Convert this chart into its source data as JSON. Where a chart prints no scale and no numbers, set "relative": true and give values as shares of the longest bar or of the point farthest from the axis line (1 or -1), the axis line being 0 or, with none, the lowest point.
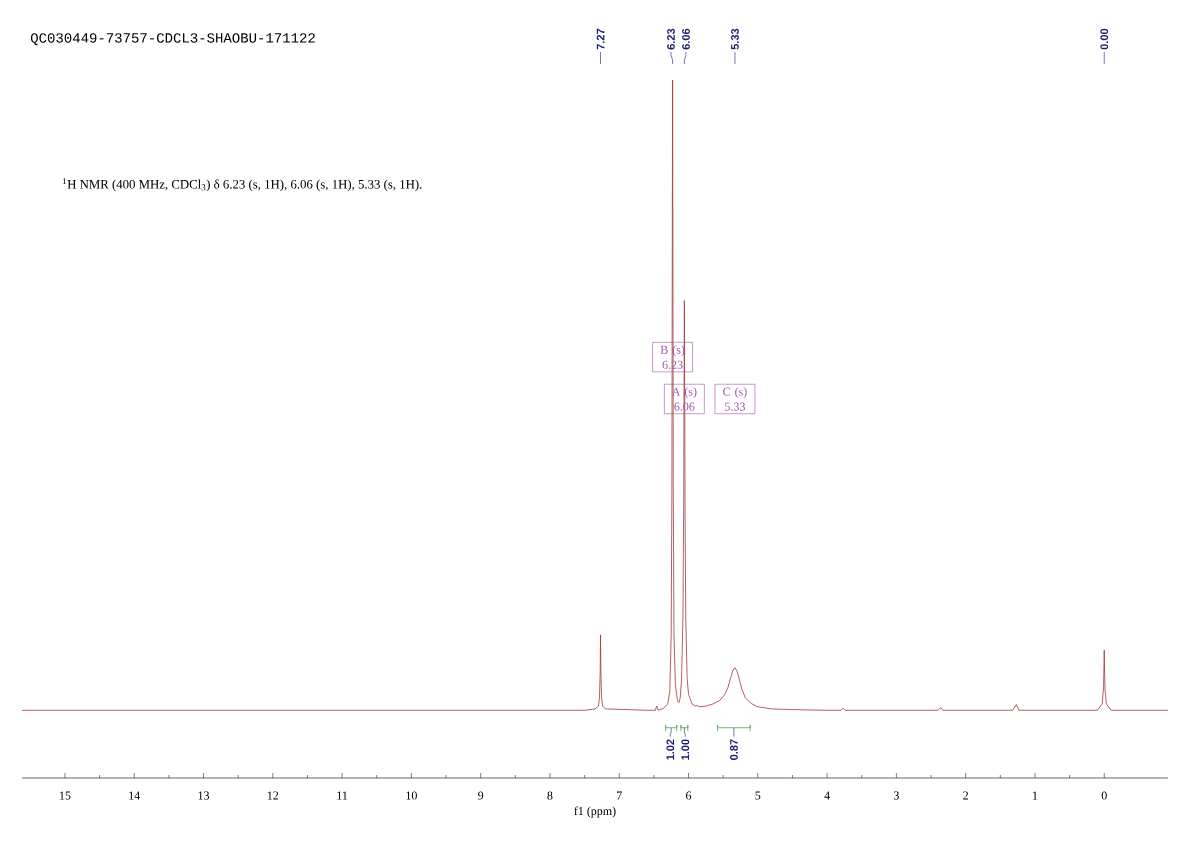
{
  "chart_data": {
    "type": "line",
    "title": "QC030449-73757-CDCL3-SHAOBU-171122",
    "xlabel": "f1 (ppm)",
    "relative": true,
    "marker": "none",
    "xlim": [
      15.62,
      -0.92
    ],
    "xticks": [
      15,
      14,
      13,
      12,
      11,
      10,
      9,
      8,
      7,
      6,
      5,
      4,
      3,
      2,
      1,
      0
    ],
    "x": [
      15.62,
      13,
      10,
      8,
      7.5,
      7.35,
      7.3,
      7.285,
      7.275,
      7.27,
      7.265,
      7.255,
      7.24,
      7.2,
      6.6,
      6.48,
      6.46,
      6.44,
      6.36,
      6.3,
      6.27,
      6.25,
      6.24,
      6.235,
      6.23,
      6.225,
      6.22,
      6.21,
      6.19,
      6.16,
      6.14,
      6.12,
      6.1,
      6.08,
      6.07,
      6.065,
      6.06,
      6.055,
      6.05,
      6.04,
      6.02,
      6.0,
      5.95,
      5.9,
      5.87,
      5.85,
      5.75,
      5.65,
      5.55,
      5.48,
      5.43,
      5.39,
      5.36,
      5.33,
      5.3,
      5.27,
      5.23,
      5.18,
      5.1,
      5.0,
      4.8,
      4.5,
      4.0,
      3.8,
      3.77,
      3.74,
      2.4,
      2.36,
      2.33,
      1.32,
      1.27,
      1.23,
      0.1,
      0.03,
      0.01,
      0.0,
      -0.01,
      -0.03,
      -0.1,
      -0.92
    ],
    "series": [
      {
        "color": "#9e3a3a",
        "values": [
          0.097,
          0.097,
          0.097,
          0.097,
          0.097,
          0.099,
          0.103,
          0.115,
          0.152,
          0.205,
          0.152,
          0.115,
          0.103,
          0.099,
          0.097,
          0.097,
          0.103,
          0.097,
          0.1,
          0.106,
          0.125,
          0.206,
          0.413,
          0.729,
          1.0,
          0.729,
          0.413,
          0.206,
          0.134,
          0.111,
          0.108,
          0.115,
          0.143,
          0.233,
          0.386,
          0.549,
          0.684,
          0.549,
          0.386,
          0.233,
          0.143,
          0.12,
          0.106,
          0.103,
          0.104,
          0.102,
          0.103,
          0.106,
          0.111,
          0.119,
          0.13,
          0.144,
          0.154,
          0.158,
          0.153,
          0.143,
          0.127,
          0.115,
          0.107,
          0.102,
          0.099,
          0.098,
          0.097,
          0.097,
          0.1,
          0.097,
          0.097,
          0.101,
          0.097,
          0.097,
          0.105,
          0.097,
          0.097,
          0.106,
          0.129,
          0.183,
          0.129,
          0.106,
          0.097,
          0.097
        ]
      },
      {
        "type": "line",
        "color": "#4ea64e",
        "x": [
          6.33,
          6.33,
          6.33,
          6.17,
          6.17,
          6.17,
          6.14,
          6.11,
          6.11,
          6.11,
          6.01,
          6.01,
          6.01,
          5.8,
          5.58,
          5.58,
          5.58,
          5.11,
          5.11,
          5.11
        ],
        "values": [
          0.067,
          0.076,
          0.072,
          0.072,
          0.076,
          0.067,
          null,
          0.067,
          0.076,
          0.072,
          0.072,
          0.076,
          0.067,
          null,
          0.067,
          0.076,
          0.072,
          0.072,
          0.076,
          0.067
        ]
      }
    ],
    "annotations": [
      "$^{1}$H NMR (400 MHz, CDCl$_{3}$) δ 6.23 (s, 1H), 6.06 (s, 1H), 5.33 (s, 1H).",
      {
        "text": "7.27",
        "x": 7.27
      },
      {
        "text": "6.23",
        "x": 6.23
      },
      {
        "text": "6.06",
        "x": 6.06
      },
      {
        "text": "5.33",
        "x": 5.33
      },
      {
        "text": "0.00",
        "x": 0.0
      },
      {
        "text": "B (s) 6.23",
        "x": 6.23,
        "y": 0.603
      },
      {
        "text": "A (s) 6.06",
        "x": 6.06,
        "y": 0.543
      },
      {
        "text": "C (s) 5.33",
        "x": 5.33,
        "y": 0.543
      },
      {
        "text": "1.02",
        "x": 6.25,
        "y": 0.072
      },
      {
        "text": "1.00",
        "x": 6.06,
        "y": 0.072
      },
      {
        "text": "0.87",
        "x": 5.345,
        "y": 0.072
      }
    ]
  }
}
